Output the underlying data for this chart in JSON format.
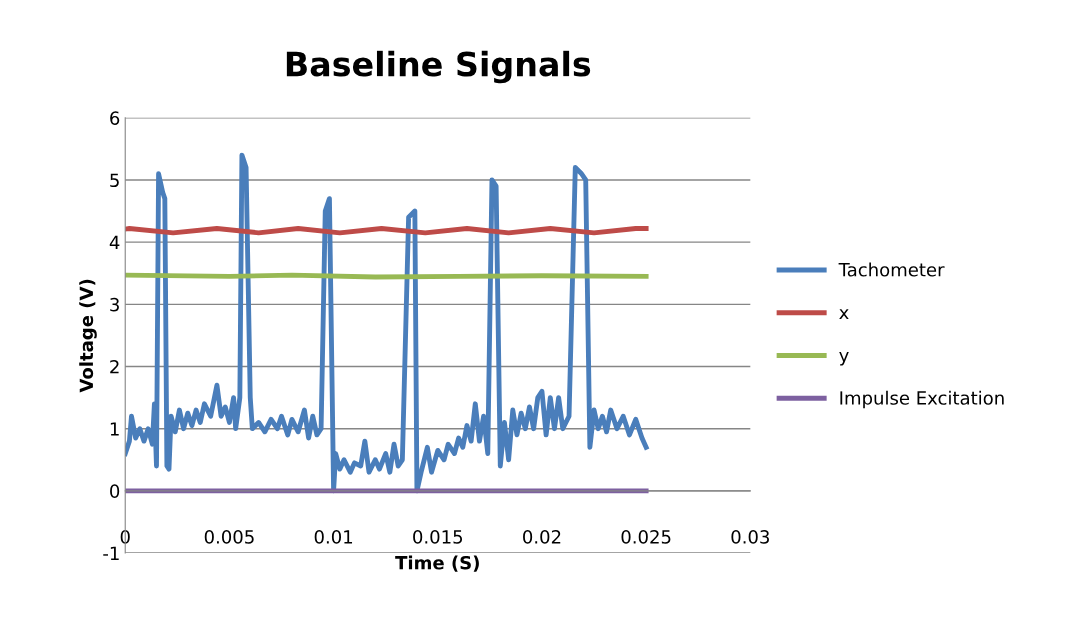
{
  "chart_data": {
    "type": "line",
    "title": "Baseline Signals",
    "xlabel": "Time (S)",
    "ylabel": "Voltage (V)",
    "xlim": [
      0,
      0.03
    ],
    "xticks": [
      0,
      0.005,
      0.01,
      0.015,
      0.02,
      0.025,
      0.03
    ],
    "ylim": [
      -1,
      6
    ],
    "yticks": [
      -1,
      0,
      1,
      2,
      3,
      4,
      5,
      6
    ],
    "grid": "y",
    "legend": "right",
    "marker": "none",
    "line_style": "solid",
    "series": [
      {
        "name": "Tachometer",
        "color": "#4a7ebb",
        "x": [
          0,
          0.0002,
          0.0003,
          0.0005,
          0.0007,
          0.0009,
          0.0011,
          0.0013,
          0.0014,
          0.0015,
          0.0016,
          0.0018,
          0.0019,
          0.002,
          0.0021,
          0.0022,
          0.0024,
          0.0026,
          0.0028,
          0.003,
          0.0032,
          0.0034,
          0.0036,
          0.0038,
          0.0041,
          0.0044,
          0.0046,
          0.0048,
          0.005,
          0.0052,
          0.0053,
          0.0055,
          0.0056,
          0.0058,
          0.006,
          0.0061,
          0.0064,
          0.0067,
          0.007,
          0.0073,
          0.0075,
          0.0078,
          0.008,
          0.0083,
          0.0086,
          0.0088,
          0.009,
          0.0092,
          0.0094,
          0.0096,
          0.0098,
          0.01,
          0.0101,
          0.0103,
          0.0105,
          0.0108,
          0.011,
          0.0113,
          0.0115,
          0.0117,
          0.012,
          0.0122,
          0.0125,
          0.0127,
          0.0129,
          0.0131,
          0.0133,
          0.0136,
          0.0139,
          0.014,
          0.0142,
          0.0145,
          0.0147,
          0.015,
          0.0153,
          0.0155,
          0.0158,
          0.016,
          0.0162,
          0.0164,
          0.0166,
          0.0168,
          0.017,
          0.0172,
          0.0174,
          0.0176,
          0.0178,
          0.018,
          0.0182,
          0.0184,
          0.0186,
          0.0188,
          0.019,
          0.0192,
          0.0194,
          0.0196,
          0.0198,
          0.02,
          0.0202,
          0.0204,
          0.0206,
          0.0208,
          0.021,
          0.0213,
          0.0216,
          0.0219,
          0.0221,
          0.0223,
          0.0225,
          0.0227,
          0.0229,
          0.0231,
          0.0233,
          0.0236,
          0.0239,
          0.0242,
          0.0245,
          0.0248,
          0.025
        ],
        "values": [
          0.6,
          0.8,
          1.2,
          0.85,
          1.0,
          0.8,
          1.0,
          0.75,
          1.4,
          0.4,
          5.1,
          4.8,
          4.7,
          0.4,
          0.35,
          1.2,
          0.95,
          1.3,
          1.0,
          1.25,
          1.05,
          1.3,
          1.1,
          1.4,
          1.2,
          1.7,
          1.2,
          1.35,
          1.1,
          1.5,
          1.0,
          1.5,
          5.4,
          5.2,
          1.5,
          1.0,
          1.1,
          0.95,
          1.15,
          1.0,
          1.2,
          0.9,
          1.15,
          0.95,
          1.3,
          0.85,
          1.2,
          0.9,
          1.0,
          4.5,
          4.7,
          0.0,
          0.6,
          0.35,
          0.5,
          0.3,
          0.45,
          0.4,
          0.8,
          0.3,
          0.5,
          0.35,
          0.6,
          0.3,
          0.75,
          0.4,
          0.5,
          4.4,
          4.5,
          0.0,
          0.3,
          0.7,
          0.3,
          0.65,
          0.5,
          0.75,
          0.6,
          0.85,
          0.7,
          1.05,
          0.8,
          1.4,
          0.8,
          1.2,
          0.6,
          5.0,
          4.9,
          0.4,
          1.1,
          0.5,
          1.3,
          0.9,
          1.25,
          1.0,
          1.35,
          1.0,
          1.5,
          1.6,
          0.9,
          1.5,
          1.0,
          1.5,
          1.0,
          1.2,
          5.2,
          5.1,
          5.0,
          0.7,
          1.3,
          1.0,
          1.2,
          0.95,
          1.3,
          1.0,
          1.2,
          0.9,
          1.15,
          0.85,
          0.7
        ]
      },
      {
        "name": "x",
        "color": "#be4b48",
        "x": [
          0,
          0.0002,
          0.0023,
          0.0044,
          0.0064,
          0.0083,
          0.0103,
          0.0123,
          0.0144,
          0.0164,
          0.0184,
          0.0204,
          0.0225,
          0.0245,
          0.025
        ],
        "values": [
          4.21,
          4.22,
          4.15,
          4.22,
          4.15,
          4.22,
          4.15,
          4.22,
          4.15,
          4.22,
          4.15,
          4.22,
          4.15,
          4.22,
          4.22
        ]
      },
      {
        "name": "y",
        "color": "#98b954",
        "x": [
          0,
          0.005,
          0.008,
          0.012,
          0.016,
          0.02,
          0.025
        ],
        "values": [
          3.47,
          3.45,
          3.47,
          3.44,
          3.45,
          3.46,
          3.45
        ]
      },
      {
        "name": "Impulse Excitation",
        "color": "#7d60a0",
        "x": [
          0,
          0.025
        ],
        "values": [
          0,
          0
        ]
      }
    ]
  }
}
